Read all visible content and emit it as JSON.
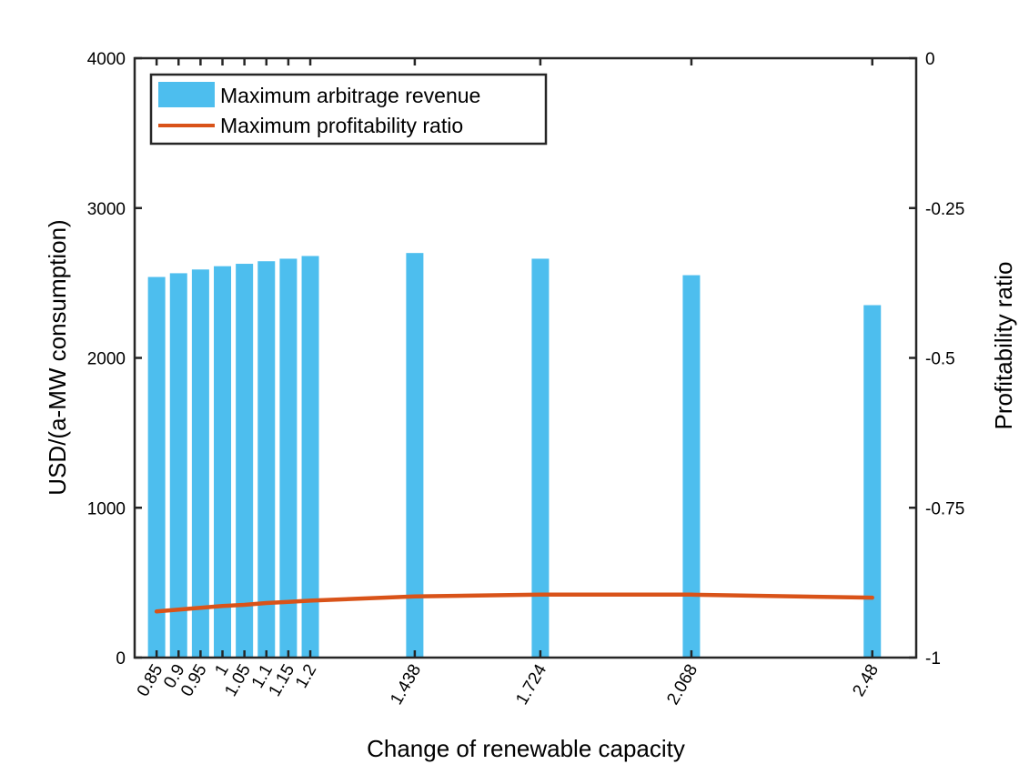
{
  "chart_data": {
    "type": "bar",
    "title": "",
    "xlabel": "Change of renewable capacity",
    "ylabel": "USD/(a-MW consumption)",
    "ylabel_right": "Profitability ratio",
    "x": [
      0.85,
      0.9,
      0.95,
      1,
      1.05,
      1.1,
      1.15,
      1.2,
      1.438,
      1.724,
      2.068,
      2.48
    ],
    "x_tick_labels": [
      "0.85",
      "0.9",
      "0.95",
      "1",
      "1.05",
      "1.1",
      "1.15",
      "1.2",
      "1.438",
      "1.724",
      "2.068",
      "2.48"
    ],
    "xlim": [
      0.8,
      2.58
    ],
    "ylim": [
      0,
      4000
    ],
    "y_ticks": [
      0,
      1000,
      2000,
      3000,
      4000
    ],
    "y_tick_labels": [
      "0",
      "1000",
      "2000",
      "3000",
      "4000"
    ],
    "ylim_right": [
      -1,
      0
    ],
    "y_ticks_right": [
      -1,
      -0.75,
      -0.5,
      -0.25,
      0
    ],
    "y_tick_labels_right": [
      "-1",
      "-0.75",
      "-0.5",
      "-0.25",
      "0"
    ],
    "grid": false,
    "legend": {
      "position": "top-left",
      "entries": [
        "Maximum arbitrage revenue",
        "Maximum profitability ratio"
      ]
    },
    "series": [
      {
        "name": "Maximum arbitrage revenue",
        "type": "bar",
        "axis": "left",
        "color": "#4DBEEE",
        "values": [
          2540,
          2565,
          2590,
          2612,
          2628,
          2645,
          2662,
          2680,
          2700,
          2662,
          2552,
          2352
        ]
      },
      {
        "name": "Maximum profitability ratio",
        "type": "line",
        "axis": "right",
        "color": "#D95319",
        "values": [
          -0.923,
          -0.92,
          -0.917,
          -0.914,
          -0.912,
          -0.909,
          -0.907,
          -0.905,
          -0.898,
          -0.895,
          -0.895,
          -0.9
        ]
      }
    ]
  }
}
